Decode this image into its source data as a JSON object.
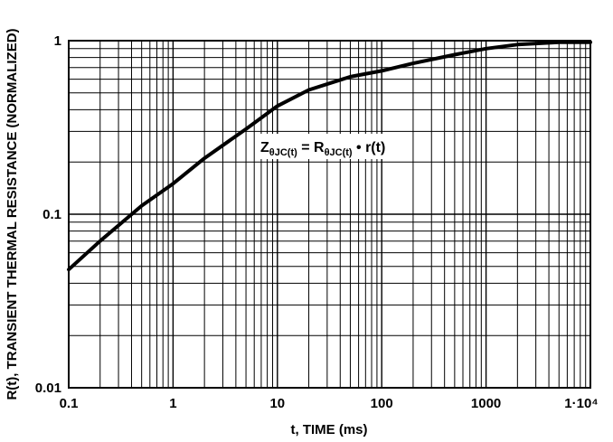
{
  "chart_data": {
    "type": "line",
    "title": "",
    "xlabel": "t, TIME (ms)",
    "ylabel": "R(t), TRANSIENT THERMAL RESISTANCE (NORMALIZED)",
    "x_scale": "log",
    "y_scale": "log",
    "xlim": [
      0.1,
      10000
    ],
    "ylim": [
      0.01,
      1
    ],
    "grid": true,
    "x_tick_labels": [
      "0.1",
      "1",
      "10",
      "100",
      "1000",
      "1·10⁴"
    ],
    "y_tick_labels": [
      "0.01",
      "0.1",
      "1"
    ],
    "series": [
      {
        "color": "#000000",
        "x": [
          0.1,
          0.2,
          0.5,
          1,
          2,
          5,
          10,
          20,
          50,
          100,
          200,
          500,
          1000,
          2000,
          5000,
          10000
        ],
        "y": [
          0.048,
          0.07,
          0.112,
          0.15,
          0.21,
          0.31,
          0.42,
          0.52,
          0.62,
          0.67,
          0.74,
          0.83,
          0.9,
          0.95,
          0.98,
          0.98
        ]
      }
    ],
    "annotation": {
      "text": "ZθJC(t) = RθJC(t) • r(t)",
      "parts": {
        "z": "Z",
        "z_sub": "θJC(t)",
        "eq": " = ",
        "r": "R",
        "r_sub": "θJC(t)",
        "tail": " • r(t)"
      }
    }
  }
}
